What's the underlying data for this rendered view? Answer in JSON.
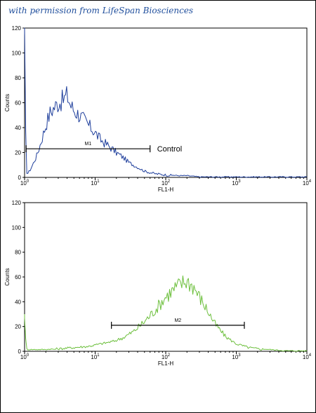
{
  "watermark": "with permission from LifeSpan Biosciences",
  "chart_data": [
    {
      "type": "line",
      "xscale": "log",
      "xlim": [
        1,
        10000
      ],
      "ylim": [
        0,
        120
      ],
      "xlabel": "FL1-H",
      "ylabel": "Counts",
      "xticks": [
        1,
        10,
        100,
        1000,
        10000
      ],
      "yticks": [
        0,
        20,
        40,
        60,
        80,
        100,
        120
      ],
      "series": [
        {
          "color": "#1f3f9c",
          "x": [
            1.0,
            1.05,
            1.1,
            1.2,
            1.3,
            1.5,
            1.7,
            2.0,
            2.3,
            2.6,
            3.0,
            3.5,
            4.0,
            4.5,
            5.0,
            6.0,
            7.0,
            8.0,
            10,
            12,
            15,
            20,
            25,
            30,
            40,
            50,
            70,
            100,
            150,
            200,
            300,
            1000,
            10000
          ],
          "y": [
            115,
            5,
            3,
            6,
            10,
            18,
            28,
            42,
            52,
            56,
            60,
            62,
            66,
            58,
            54,
            50,
            46,
            42,
            36,
            30,
            26,
            20,
            16,
            12,
            8,
            5,
            3,
            2,
            1,
            1,
            0,
            0,
            0
          ]
        }
      ],
      "gate": {
        "label": "M1",
        "x": [
          1.05,
          60
        ],
        "y": 23
      },
      "annotation": "Control"
    },
    {
      "type": "line",
      "xscale": "log",
      "xlim": [
        1,
        10000
      ],
      "ylim": [
        0,
        120
      ],
      "xlabel": "FL1-H",
      "ylabel": "Counts",
      "xticks": [
        1,
        10,
        100,
        1000,
        10000
      ],
      "yticks": [
        0,
        20,
        40,
        60,
        80,
        100,
        120
      ],
      "series": [
        {
          "color": "#6cbf3c",
          "x": [
            1.0,
            1.05,
            1.1,
            1.3,
            1.6,
            2,
            3,
            5,
            8,
            12,
            18,
            25,
            35,
            50,
            70,
            100,
            130,
            170,
            200,
            250,
            300,
            400,
            500,
            700,
            1000,
            1500,
            2000,
            3000,
            5000,
            10000
          ],
          "y": [
            30,
            2,
            1,
            1,
            1,
            1,
            2,
            3,
            4,
            6,
            8,
            11,
            16,
            24,
            33,
            44,
            50,
            55,
            57,
            52,
            44,
            32,
            22,
            12,
            6,
            3,
            2,
            1,
            0,
            0
          ]
        }
      ],
      "gate": {
        "label": "M2",
        "x": [
          17,
          1300
        ],
        "y": 21
      }
    }
  ]
}
